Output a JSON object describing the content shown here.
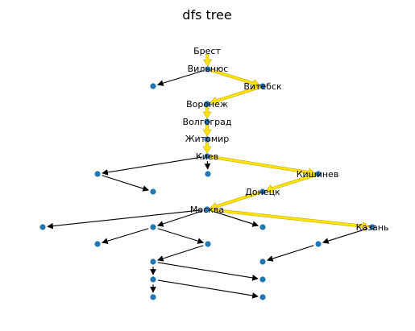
{
  "title": "dfs tree",
  "colors": {
    "node": "#1f77b4",
    "edge": "#000000",
    "path_fill": "#ffe500",
    "path_edge": "#c8a800",
    "background": "#ffffff"
  },
  "labels": {
    "brest": "Брест",
    "vilnius": "Вильнюс",
    "vitebsk": "Витебск",
    "voronezh": "Воронеж",
    "volgograd": "Волгоград",
    "zhitomir": "Житомир",
    "kiev": "Киев",
    "kishinev": "Кишинев",
    "donetsk": "Донецк",
    "moskva": "Москва",
    "kazan": "Казань"
  }
}
